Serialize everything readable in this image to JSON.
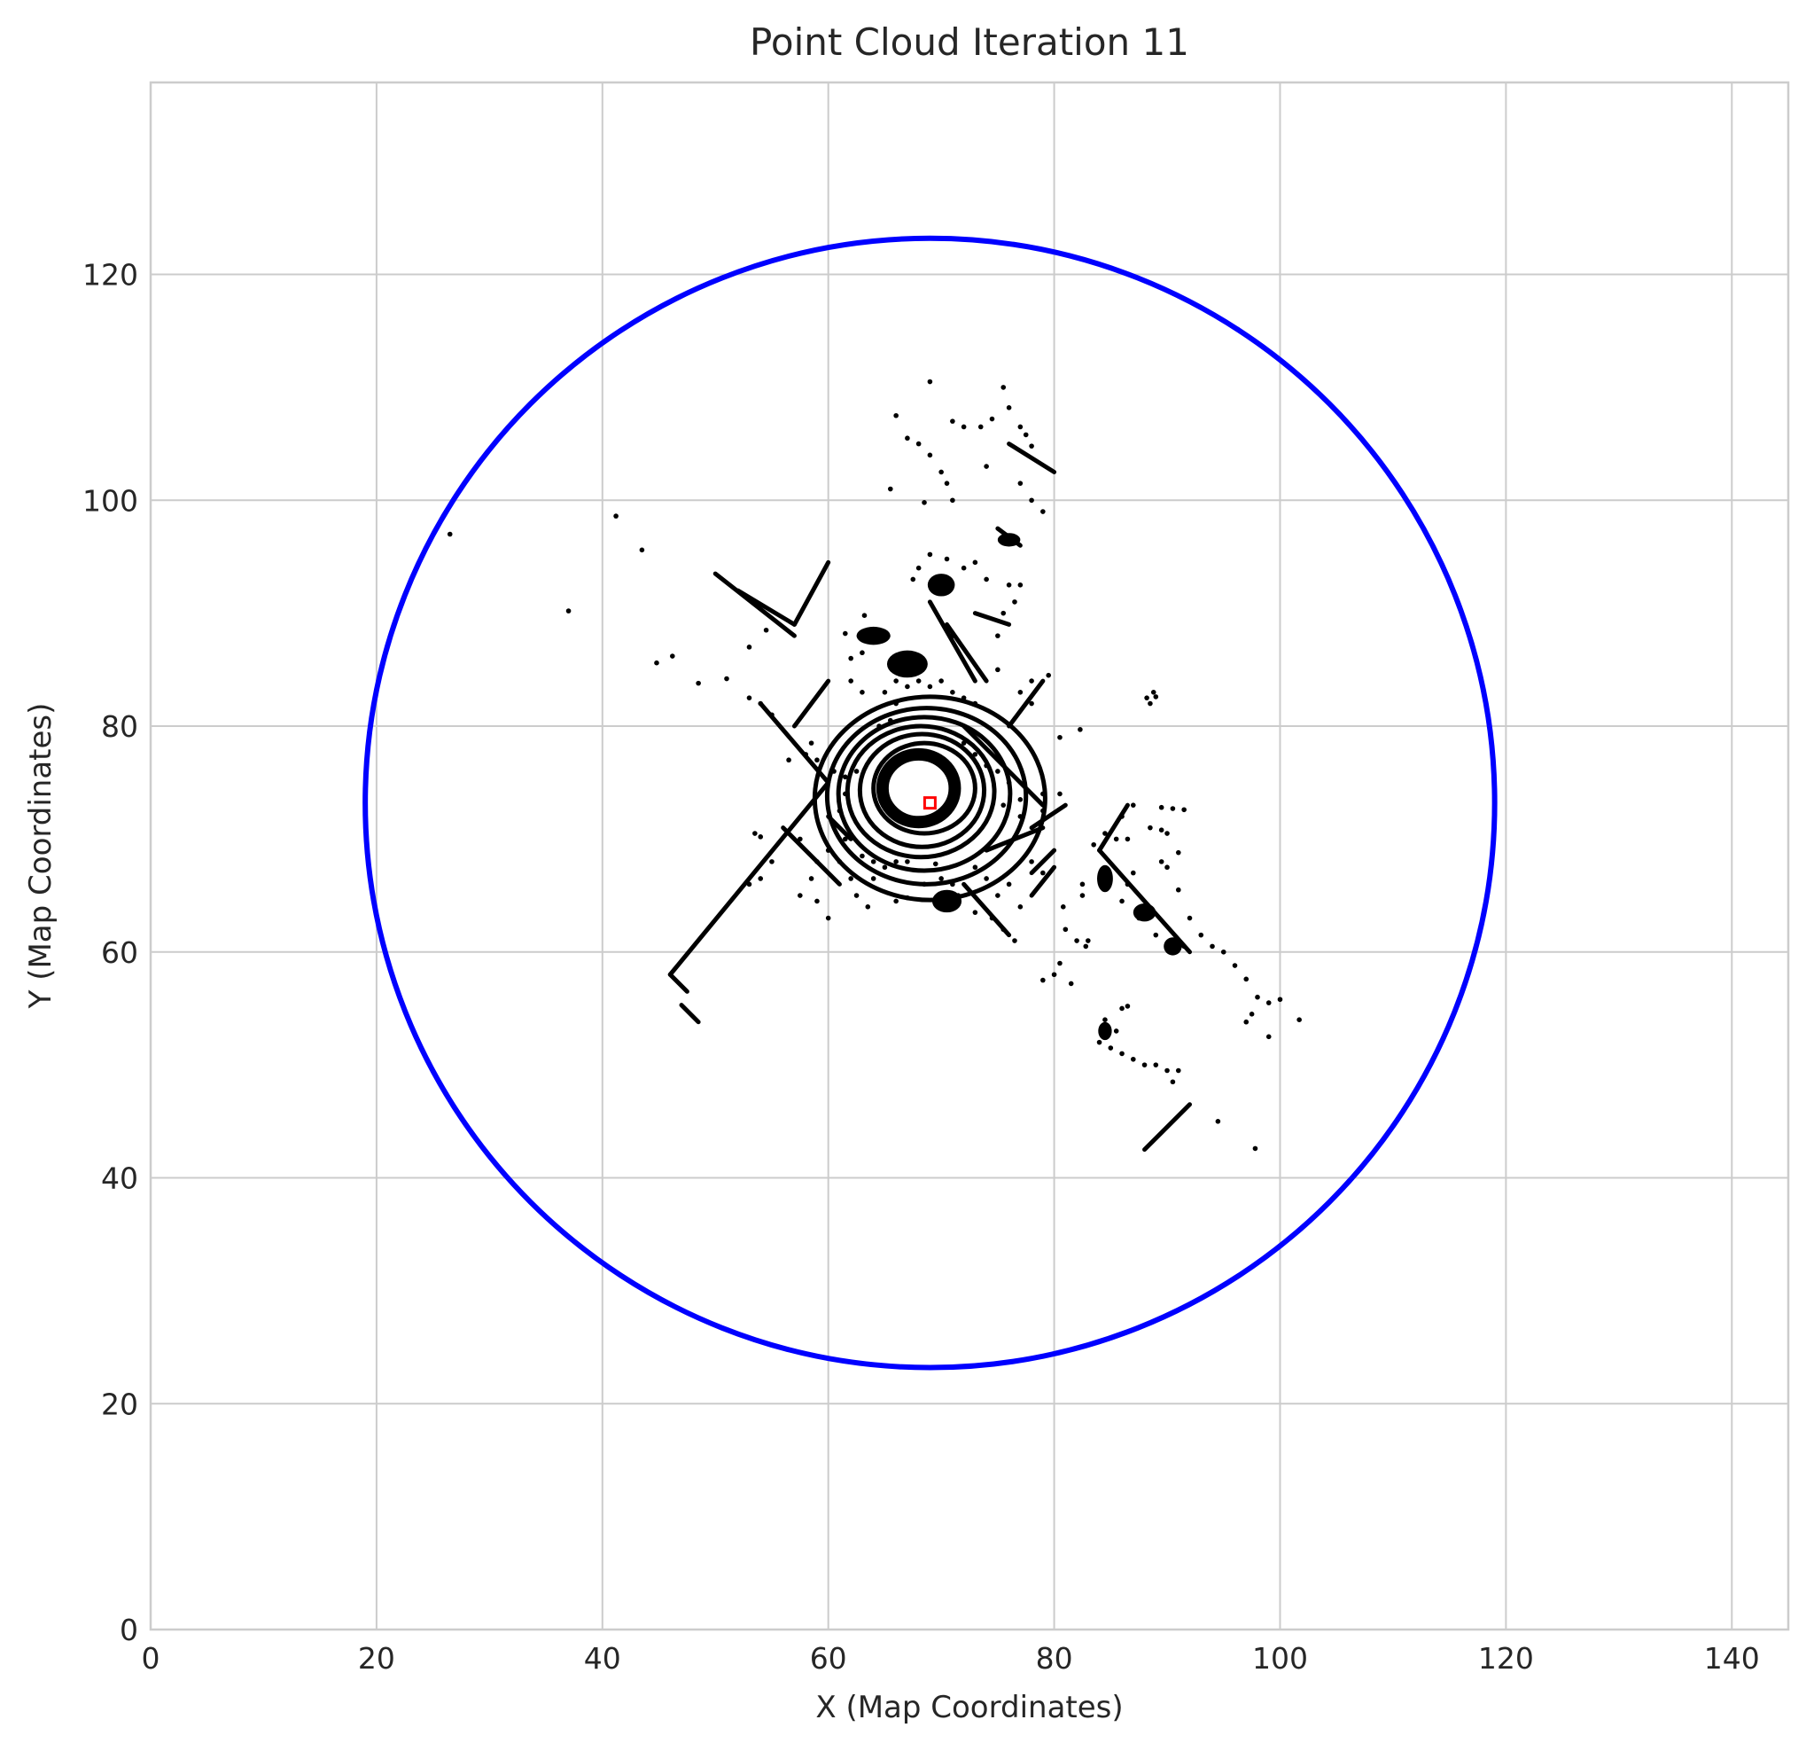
{
  "chart_data": {
    "type": "scatter",
    "title": "Point Cloud Iteration 11",
    "xlabel": "X (Map Coordinates)",
    "ylabel": "Y (Map Coordinates)",
    "xlim": [
      0,
      145
    ],
    "ylim": [
      0,
      137
    ],
    "xticks": [
      0,
      20,
      40,
      60,
      80,
      100,
      120,
      140
    ],
    "yticks": [
      0,
      20,
      40,
      60,
      80,
      100,
      120
    ],
    "grid": true,
    "colors": {
      "points": "#000000",
      "circle": "#0000ff",
      "vehicle": "#ff0000",
      "grid": "#cccccc",
      "frame": "#cccccc"
    },
    "range_circle": {
      "center": [
        69,
        73.2
      ],
      "radius": 50
    },
    "vehicle_marker": {
      "x": 69,
      "y": 73.2
    },
    "rings": [
      {
        "cx": 68.5,
        "cy": 74.5,
        "rx": 4.5,
        "ry": 4
      },
      {
        "cx": 68.3,
        "cy": 74.3,
        "rx": 5.5,
        "ry": 5
      },
      {
        "cx": 68.2,
        "cy": 74.2,
        "rx": 6.5,
        "ry": 5.8
      },
      {
        "cx": 68.5,
        "cy": 74,
        "rx": 7.6,
        "ry": 6.8
      },
      {
        "cx": 68.7,
        "cy": 73.8,
        "rx": 8.8,
        "ry": 7.8
      },
      {
        "cx": 69,
        "cy": 73.6,
        "rx": 10.2,
        "ry": 9
      }
    ],
    "segments": [
      {
        "x1": 46,
        "y1": 58,
        "x2": 60,
        "y2": 75
      },
      {
        "x1": 46,
        "y1": 58,
        "x2": 47.5,
        "y2": 56.5
      },
      {
        "x1": 47,
        "y1": 55.3,
        "x2": 48.5,
        "y2": 53.8
      },
      {
        "x1": 56,
        "y1": 71,
        "x2": 61,
        "y2": 66
      },
      {
        "x1": 72,
        "y1": 80,
        "x2": 79,
        "y2": 73
      },
      {
        "x1": 50,
        "y1": 93.5,
        "x2": 57,
        "y2": 88
      },
      {
        "x1": 52,
        "y1": 92,
        "x2": 57,
        "y2": 89
      },
      {
        "x1": 60,
        "y1": 94.5,
        "x2": 57,
        "y2": 89
      },
      {
        "x1": 76,
        "y1": 105,
        "x2": 80,
        "y2": 102.5
      },
      {
        "x1": 75,
        "y1": 97.5,
        "x2": 77,
        "y2": 96
      },
      {
        "x1": 84,
        "y1": 69,
        "x2": 86.5,
        "y2": 73
      },
      {
        "x1": 84,
        "y1": 69,
        "x2": 92,
        "y2": 60
      },
      {
        "x1": 88,
        "y1": 42.5,
        "x2": 92,
        "y2": 46.5
      },
      {
        "x1": 72,
        "y1": 66,
        "x2": 76,
        "y2": 61.5
      },
      {
        "x1": 69,
        "y1": 91,
        "x2": 73,
        "y2": 84
      },
      {
        "x1": 70.5,
        "y1": 89,
        "x2": 74,
        "y2": 84
      },
      {
        "x1": 73,
        "y1": 90,
        "x2": 76,
        "y2": 89
      },
      {
        "x1": 76,
        "y1": 80,
        "x2": 79,
        "y2": 84
      },
      {
        "x1": 54,
        "y1": 82,
        "x2": 60,
        "y2": 75
      },
      {
        "x1": 57,
        "y1": 80,
        "x2": 60,
        "y2": 84
      },
      {
        "x1": 78,
        "y1": 71,
        "x2": 81,
        "y2": 73
      },
      {
        "x1": 78,
        "y1": 67,
        "x2": 80,
        "y2": 69
      },
      {
        "x1": 78,
        "y1": 65,
        "x2": 80,
        "y2": 67.5
      },
      {
        "x1": 62,
        "y1": 70,
        "x2": 60,
        "y2": 72
      },
      {
        "x1": 74,
        "y1": 69,
        "x2": 79,
        "y2": 71
      }
    ],
    "clusters": [
      {
        "x": 64,
        "y": 88,
        "rx": 1.5,
        "ry": 0.8
      },
      {
        "x": 67,
        "y": 85.5,
        "rx": 1.8,
        "ry": 1.2
      },
      {
        "x": 70,
        "y": 92.5,
        "rx": 1.2,
        "ry": 1
      },
      {
        "x": 70.5,
        "y": 64.5,
        "rx": 1.3,
        "ry": 1
      },
      {
        "x": 84.5,
        "y": 66.5,
        "rx": 0.7,
        "ry": 1.2
      },
      {
        "x": 88,
        "y": 63.5,
        "rx": 1,
        "ry": 0.8
      },
      {
        "x": 84.5,
        "y": 53,
        "rx": 0.6,
        "ry": 0.8
      },
      {
        "x": 90.5,
        "y": 60.5,
        "rx": 0.8,
        "ry": 0.8
      },
      {
        "x": 76,
        "y": 96.5,
        "rx": 1,
        "ry": 0.6
      }
    ],
    "points": [
      [
        26.5,
        97
      ],
      [
        37,
        90.2
      ],
      [
        41.2,
        98.6
      ],
      [
        43.5,
        95.6
      ],
      [
        44.8,
        85.6
      ],
      [
        46.2,
        86.2
      ],
      [
        48.5,
        83.8
      ],
      [
        51,
        84.2
      ],
      [
        53,
        82.5
      ],
      [
        54,
        82
      ],
      [
        55,
        81
      ],
      [
        53,
        87
      ],
      [
        54.5,
        88.5
      ],
      [
        53.5,
        70.5
      ],
      [
        54,
        70.2
      ],
      [
        53,
        66
      ],
      [
        54,
        66.5
      ],
      [
        55,
        68
      ],
      [
        57.5,
        65
      ],
      [
        58.5,
        66.5
      ],
      [
        59,
        64.5
      ],
      [
        60,
        63
      ],
      [
        60,
        69
      ],
      [
        61,
        68
      ],
      [
        63,
        68.5
      ],
      [
        64,
        66.5
      ],
      [
        65,
        67.5
      ],
      [
        66,
        68
      ],
      [
        67,
        68
      ],
      [
        62.5,
        65
      ],
      [
        63.5,
        64
      ],
      [
        66,
        64.5
      ],
      [
        67,
        64.8
      ],
      [
        64,
        68
      ],
      [
        69,
        110.5
      ],
      [
        71,
        107
      ],
      [
        72,
        106.5
      ],
      [
        73.5,
        106.5
      ],
      [
        74.5,
        107.2
      ],
      [
        75.5,
        110
      ],
      [
        76,
        108.2
      ],
      [
        77,
        106.5
      ],
      [
        77.5,
        105.8
      ],
      [
        78,
        104.8
      ],
      [
        66,
        107.5
      ],
      [
        67,
        105.5
      ],
      [
        68,
        105
      ],
      [
        69,
        104
      ],
      [
        70,
        102.5
      ],
      [
        70.5,
        101.5
      ],
      [
        65.5,
        101
      ],
      [
        68.5,
        99.8
      ],
      [
        71,
        100
      ],
      [
        74,
        103
      ],
      [
        77,
        101.5
      ],
      [
        78,
        100
      ],
      [
        79,
        99
      ],
      [
        69,
        95.2
      ],
      [
        68,
        94
      ],
      [
        67.5,
        93
      ],
      [
        70.5,
        94.8
      ],
      [
        72,
        94
      ],
      [
        74,
        93
      ],
      [
        73,
        94.5
      ],
      [
        63.2,
        89.8
      ],
      [
        61.5,
        88.2
      ],
      [
        71,
        88
      ],
      [
        75,
        88
      ],
      [
        75,
        85
      ],
      [
        77,
        83
      ],
      [
        78,
        84
      ],
      [
        79.5,
        84.5
      ],
      [
        78,
        82
      ],
      [
        80.5,
        79
      ],
      [
        82.3,
        79.7
      ],
      [
        80.5,
        74
      ],
      [
        77,
        72
      ],
      [
        79,
        72.5
      ],
      [
        79,
        74
      ],
      [
        82.5,
        65
      ],
      [
        82,
        61
      ],
      [
        83,
        61
      ],
      [
        80.5,
        59
      ],
      [
        80,
        58
      ],
      [
        79,
        57.5
      ],
      [
        81.5,
        57.2
      ],
      [
        82.8,
        60.5
      ],
      [
        82.5,
        66
      ],
      [
        83.5,
        69.5
      ],
      [
        86,
        72
      ],
      [
        87,
        73
      ],
      [
        89.5,
        72.8
      ],
      [
        90.5,
        72.7
      ],
      [
        91.5,
        72.6
      ],
      [
        88.5,
        71
      ],
      [
        89.5,
        70.8
      ],
      [
        90,
        70.5
      ],
      [
        91,
        68.8
      ],
      [
        88.2,
        82.5
      ],
      [
        89,
        82.6
      ],
      [
        88.8,
        83
      ],
      [
        88.5,
        82
      ],
      [
        89.5,
        68
      ],
      [
        90,
        67.5
      ],
      [
        91,
        65.5
      ],
      [
        92,
        63
      ],
      [
        93,
        61.5
      ],
      [
        94,
        60.5
      ],
      [
        95,
        60
      ],
      [
        96,
        58.8
      ],
      [
        97,
        57.6
      ],
      [
        98,
        56
      ],
      [
        99,
        55.5
      ],
      [
        100,
        55.8
      ],
      [
        101.7,
        54
      ],
      [
        97.5,
        54.5
      ],
      [
        97,
        53.8
      ],
      [
        99,
        52.5
      ],
      [
        85,
        51.5
      ],
      [
        86,
        51
      ],
      [
        87,
        50.5
      ],
      [
        88,
        50
      ],
      [
        89,
        50
      ],
      [
        90,
        49.5
      ],
      [
        90.5,
        48.5
      ],
      [
        91,
        49.5
      ],
      [
        85.5,
        53
      ],
      [
        86,
        55
      ],
      [
        86.5,
        55.2
      ],
      [
        94.5,
        45
      ],
      [
        97.8,
        42.6
      ],
      [
        71.5,
        65
      ],
      [
        73,
        63.5
      ],
      [
        74.5,
        63
      ],
      [
        75.5,
        62
      ],
      [
        76.5,
        61
      ],
      [
        73,
        67.5
      ],
      [
        74,
        66.5
      ],
      [
        75,
        65
      ],
      [
        76,
        66
      ],
      [
        77,
        64
      ],
      [
        61.5,
        70
      ],
      [
        62,
        66.5
      ],
      [
        64.5,
        80
      ],
      [
        63,
        83
      ],
      [
        62,
        84
      ],
      [
        62,
        86
      ],
      [
        63,
        86.5
      ],
      [
        65,
        83
      ],
      [
        66,
        84
      ],
      [
        67,
        83.5
      ],
      [
        68,
        84
      ],
      [
        69,
        83.5
      ],
      [
        70,
        84
      ],
      [
        71,
        83
      ],
      [
        72,
        82.5
      ],
      [
        73,
        82
      ],
      [
        75.5,
        90
      ],
      [
        76,
        92.5
      ],
      [
        77,
        92.5
      ],
      [
        76.5,
        91
      ],
      [
        58.5,
        78.5
      ],
      [
        59,
        77
      ],
      [
        58,
        77.5
      ],
      [
        56.5,
        77
      ],
      [
        60.5,
        76
      ],
      [
        61.5,
        75.5
      ],
      [
        62.5,
        76
      ],
      [
        61.5,
        74
      ],
      [
        61,
        72.5
      ],
      [
        57.5,
        70
      ],
      [
        59,
        68
      ],
      [
        66,
        82
      ],
      [
        65.5,
        80.5
      ],
      [
        72,
        78.5
      ],
      [
        73,
        77.5
      ],
      [
        74,
        76.5
      ],
      [
        75,
        76
      ],
      [
        76,
        75
      ],
      [
        77,
        73.5
      ],
      [
        75.5,
        73
      ],
      [
        70,
        66.5
      ],
      [
        71,
        66
      ],
      [
        68.5,
        66
      ],
      [
        69.5,
        67.8
      ],
      [
        78,
        68
      ],
      [
        79,
        67
      ],
      [
        80.8,
        64
      ],
      [
        81,
        62
      ],
      [
        86,
        64.5
      ],
      [
        86.5,
        66
      ],
      [
        87,
        67
      ],
      [
        85.5,
        70
      ],
      [
        84.5,
        70.5
      ],
      [
        87.5,
        63
      ],
      [
        89,
        61.5
      ],
      [
        86.5,
        70
      ],
      [
        91.5,
        60.5
      ],
      [
        84,
        52
      ],
      [
        84.5,
        54
      ]
    ]
  }
}
